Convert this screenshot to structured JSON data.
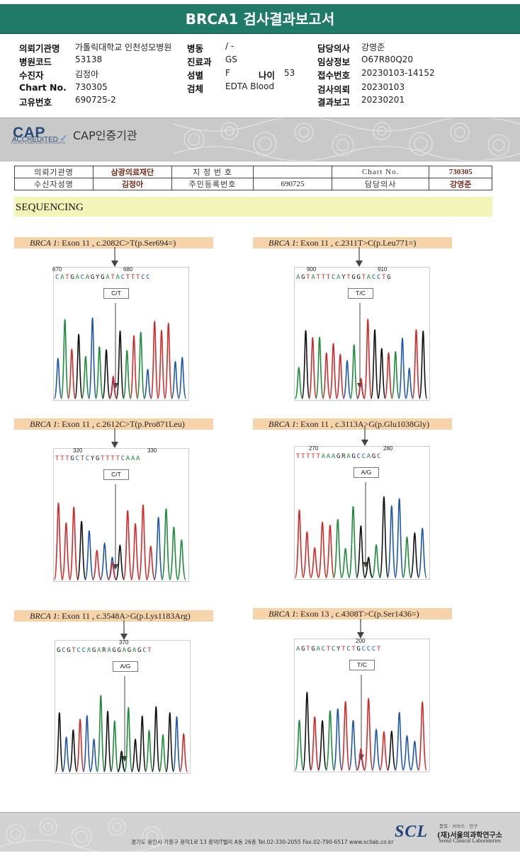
{
  "report_title": "BRCA1 검사결과보고서",
  "header": {
    "left": [
      {
        "label": "의뢰기관명",
        "value": "가톨릭대학교 인천성모병원"
      },
      {
        "label": "병원코드",
        "value": "53138"
      },
      {
        "label": "수진자",
        "value": "김정아"
      },
      {
        "label": "Chart No.",
        "value": "730305"
      },
      {
        "label": "고유번호",
        "value": "690725-2"
      }
    ],
    "middle": [
      {
        "label": "병동",
        "value": "/ -"
      },
      {
        "label": "진료과",
        "value": "GS"
      },
      {
        "label": "성별",
        "value": "F"
      },
      {
        "label": "검체",
        "value": "EDTA Blood"
      }
    ],
    "age_label": "나이",
    "age_value": "53",
    "right": [
      {
        "label": "담당의사",
        "value": "강영준"
      },
      {
        "label": "임상정보",
        "value": "O67R80Q20"
      },
      {
        "label": "접수번호",
        "value": "20230103-14152"
      },
      {
        "label": "검사의뢰",
        "value": "20230103"
      },
      {
        "label": "결과보고",
        "value": "20230201"
      }
    ]
  },
  "cap": {
    "logo_main": "CAP",
    "logo_accredited": "ACCREDITED",
    "logo_college": "COLLEGE of AMERICAN PATHOLOGISTS",
    "cert_label": "CAP인증기관"
  },
  "info_table": {
    "r1": {
      "l1": "의뢰기관명",
      "v1": "삼광의료재단",
      "l2": "지 정 번 호",
      "v2": "",
      "l3": "Chart No.",
      "v3": "730305"
    },
    "r2": {
      "l1": "수신자성명",
      "v1": "김정아",
      "l2": "주민등록번호",
      "v2": "690725",
      "l3": "담당의사",
      "v3": "강영준"
    }
  },
  "section_title": "SEQUENCING",
  "variants": [
    {
      "gene": "BRCA 1",
      "detail": ": Exon 11 , c.2082C>T(p.Ser694=)",
      "pos1": "670",
      "pos2": "680",
      "sequence": "CATGACAGYGATACTTTCC",
      "genotype": "C/T"
    },
    {
      "gene": "BRCA 1",
      "detail": ": Exon 11 , c.2311T>C(p.Leu771=)",
      "pos1": "900",
      "pos2": "910",
      "sequence": "AGTATTTCAYTGGTACCTG",
      "genotype": "T/C"
    },
    {
      "gene": "BRCA 1",
      "detail": ": Exon 11 , c.2612C>T(p.Pro871Leu)",
      "pos1": "320",
      "pos2": "330",
      "sequence": "TTTGCTCYGTTTTCAAA",
      "genotype": "C/T"
    },
    {
      "gene": "BRCA 1",
      "detail": ": Exon 11 , c.3113A>G(p.Glu1038Gly)",
      "pos1": "270",
      "pos2": "280",
      "sequence": "TTTTTAAAGRAGCCAGC",
      "genotype": "A/G"
    },
    {
      "gene": "BRCA 1",
      "detail": ": Exon 11 , c.3548A>G(p.Lys1183Arg)",
      "pos1": "",
      "pos2": "370",
      "sequence": "GCGTCCAGARAGGAGAGCT",
      "genotype": "A/G"
    },
    {
      "gene": "BRCA 1",
      "detail": ": Exon 13 , c.4308T>C(p.Ser1436=)",
      "pos1": "",
      "pos2": "200",
      "sequence": "AGTGACTCYTCTGCCCT",
      "genotype": "T/C"
    }
  ],
  "footer": {
    "address": "경기도 용인시 기흥구 흥덕1로 13 흥덕IT밸리 A동 26층  Tel.02-330-2055  Fax.02-790-6517  www.scllab.co.kr",
    "logo": "SCL",
    "tagline": "품질 · 서비스 · 연구",
    "name_ko": "(재)서울의과학연구소",
    "name_en": "Seoul Clinical Laboratories"
  },
  "colors": {
    "header_green": "#1f7a68",
    "label_peach": "#f6d3a8",
    "seq_yellow": "#f3f5b8",
    "base_A": "#1e8c3a",
    "base_C": "#1f57b0",
    "base_G": "#111111",
    "base_T": "#d12a2a"
  }
}
